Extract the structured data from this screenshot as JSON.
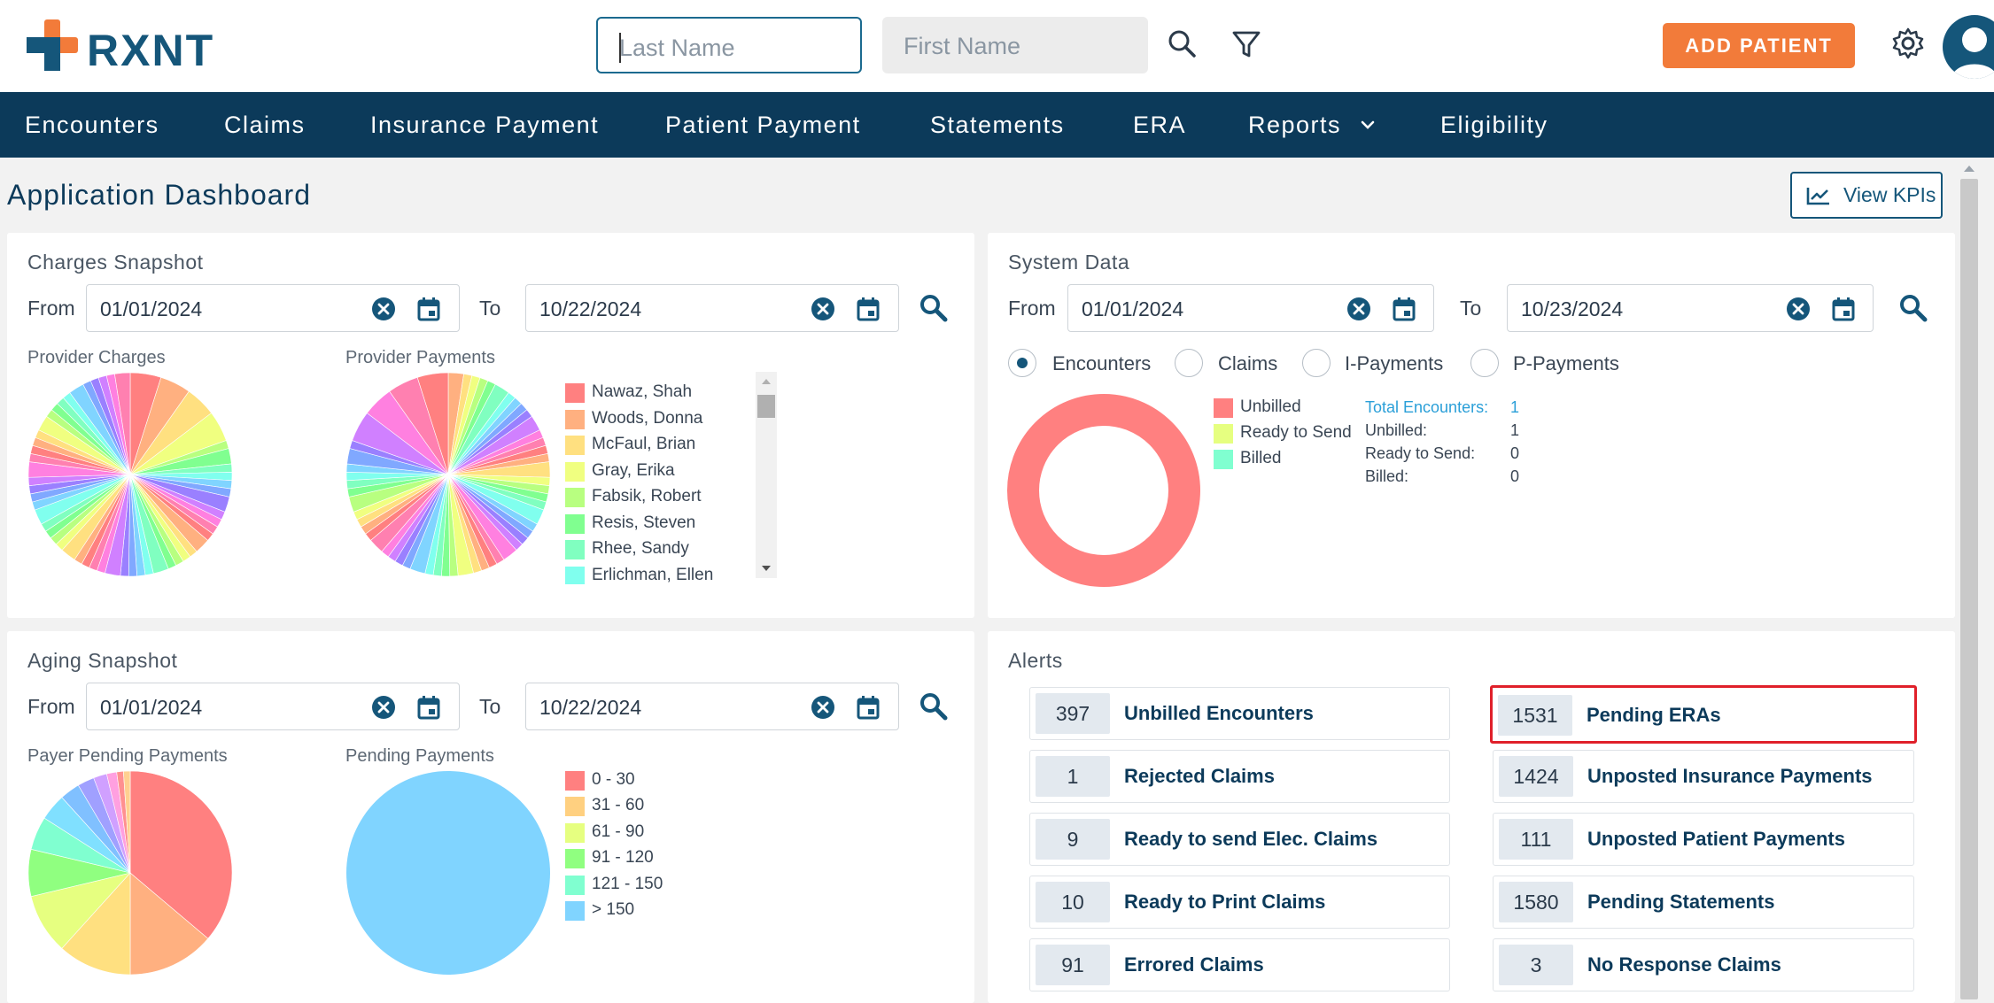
{
  "header": {
    "logo_text": "RXNT",
    "last_name_placeholder": "Last Name",
    "first_name_placeholder": "First Name",
    "add_patient_label": "ADD PATIENT",
    "icons": [
      "search-icon",
      "filter-icon",
      "gear-icon",
      "user-avatar-icon"
    ]
  },
  "nav": {
    "items": [
      "Encounters",
      "Claims",
      "Insurance Payment",
      "Patient Payment",
      "Statements",
      "ERA",
      "Reports",
      "Eligibility"
    ]
  },
  "page": {
    "title": "Application Dashboard",
    "view_kpis_label": "View KPIs"
  },
  "charges_snapshot": {
    "title": "Charges Snapshot",
    "from_label": "From",
    "to_label": "To",
    "from_date": "01/01/2024",
    "to_date": "10/22/2024",
    "provider_charges_label": "Provider Charges",
    "provider_payments_label": "Provider Payments",
    "legend": [
      "Nawaz, Shah",
      "Woods, Donna",
      "McFaul, Brian",
      "Gray, Erika",
      "Fabsik, Robert",
      "Resis, Steven",
      "Rhee, Sandy",
      "Erlichman, Ellen"
    ],
    "legend_colors": [
      "#ff8080",
      "#ffb080",
      "#ffe080",
      "#f0ff80",
      "#b8ff80",
      "#80ff90",
      "#80ffc0",
      "#80ffee"
    ]
  },
  "system_data": {
    "title": "System Data",
    "from_label": "From",
    "to_label": "To",
    "from_date": "01/01/2024",
    "to_date": "10/23/2024",
    "radios": [
      "Encounters",
      "Claims",
      "I-Payments",
      "P-Payments"
    ],
    "selected_radio": "Encounters",
    "legend": [
      "Unbilled",
      "Ready to Send",
      "Billed"
    ],
    "legend_colors": [
      "#ff8080",
      "#e6ff80",
      "#80ffd0"
    ],
    "stats": [
      {
        "label": "Total Encounters:",
        "value": "1"
      },
      {
        "label": "Unbilled:",
        "value": "1"
      },
      {
        "label": "Ready to Send:",
        "value": "0"
      },
      {
        "label": "Billed:",
        "value": "0"
      }
    ]
  },
  "aging_snapshot": {
    "title": "Aging Snapshot",
    "from_label": "From",
    "to_label": "To",
    "from_date": "01/01/2024",
    "to_date": "10/22/2024",
    "payer_pending_label": "Payer Pending Payments",
    "pending_payments_label": "Pending Payments",
    "legend": [
      "0 - 30",
      "31 - 60",
      "61 - 90",
      "91 - 120",
      "121 - 150",
      "> 150"
    ],
    "legend_colors": [
      "#ff8080",
      "#ffd080",
      "#e6ff80",
      "#90ff80",
      "#80ffd0",
      "#80d4ff"
    ]
  },
  "alerts": {
    "title": "Alerts",
    "left": [
      {
        "count": "397",
        "label": "Unbilled Encounters"
      },
      {
        "count": "1",
        "label": "Rejected Claims"
      },
      {
        "count": "9",
        "label": "Ready to send Elec. Claims"
      },
      {
        "count": "10",
        "label": "Ready to Print Claims"
      },
      {
        "count": "91",
        "label": "Errored Claims"
      }
    ],
    "right": [
      {
        "count": "1531",
        "label": "Pending ERAs"
      },
      {
        "count": "1424",
        "label": "Unposted Insurance Payments"
      },
      {
        "count": "111",
        "label": "Unposted Patient Payments"
      },
      {
        "count": "1580",
        "label": "Pending Statements"
      },
      {
        "count": "3",
        "label": "No Response Claims"
      }
    ]
  }
}
